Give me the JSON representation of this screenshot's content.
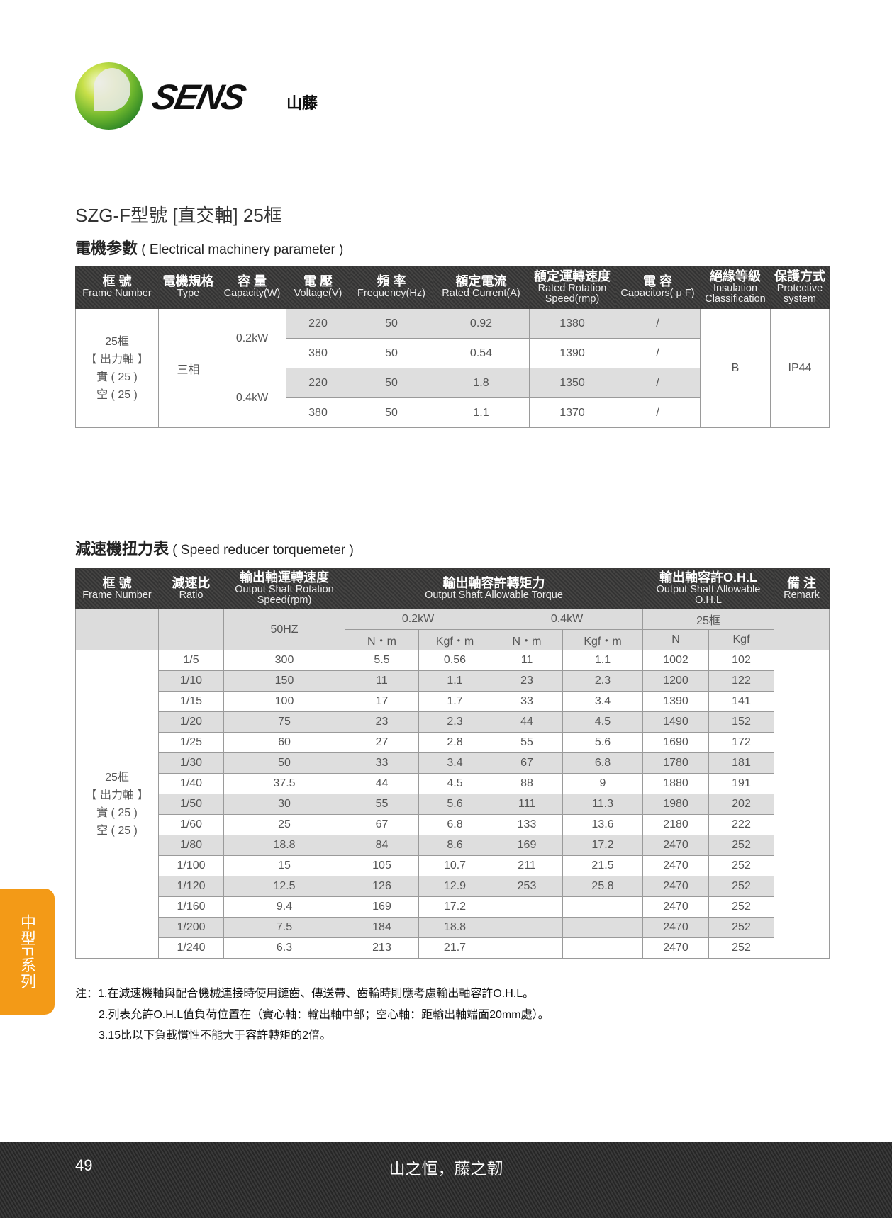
{
  "brand": {
    "logo_text": "SENS",
    "logo_sub": "山藤",
    "brand_color": "#5aae2e"
  },
  "title": "SZG-F型號 [直交軸] 25框",
  "section1": {
    "cn": "電機参數",
    "en": "( Electrical machinery parameter )"
  },
  "table1": {
    "headers": [
      {
        "cn": "框 號",
        "en": "Frame Number"
      },
      {
        "cn": "電機規格",
        "en": "Type"
      },
      {
        "cn": "容 量",
        "en": "Capacity(W)"
      },
      {
        "cn": "電 壓",
        "en": "Voltage(V)"
      },
      {
        "cn": "頻 率",
        "en": "Frequency(Hz)"
      },
      {
        "cn": "額定電流",
        "en": "Rated Current(A)"
      },
      {
        "cn": "額定運轉速度",
        "en": "Rated Rotation Speed(rmp)"
      },
      {
        "cn": "電 容",
        "en": "Capacitors( μ F)"
      },
      {
        "cn": "絕緣等級",
        "en": "Insulation Classification"
      },
      {
        "cn": "保護方式",
        "en": "Protective system"
      }
    ],
    "frame": [
      "25框",
      "【 出力軸 】",
      "實 ( 25 )",
      "空 ( 25 )"
    ],
    "type": "三相",
    "capacities": [
      "0.2kW",
      "0.4kW"
    ],
    "rows": [
      [
        "220",
        "50",
        "0.92",
        "1380",
        "/"
      ],
      [
        "380",
        "50",
        "0.54",
        "1390",
        "/"
      ],
      [
        "220",
        "50",
        "1.8",
        "1350",
        "/"
      ],
      [
        "380",
        "50",
        "1.1",
        "1370",
        "/"
      ]
    ],
    "insulation": "B",
    "protection": "IP44"
  },
  "section2": {
    "cn": "減速機扭力表",
    "en": "( Speed reducer torquemeter )"
  },
  "table2": {
    "headers": [
      {
        "cn": "框 號",
        "en": "Frame Number"
      },
      {
        "cn": "減速比",
        "en": "Ratio"
      },
      {
        "cn": "輸出軸運轉速度",
        "en": "Output Shaft Rotation Speed(rpm)"
      },
      {
        "cn": "輸出軸容許轉矩力",
        "en": "Output Shaft Allowable Torque"
      },
      {
        "cn": "輸出軸容許O.H.L",
        "en": "Output Shaft Allowable O.H.L"
      },
      {
        "cn": "備 注",
        "en": "Remark"
      }
    ],
    "freq": "50HZ",
    "groups": [
      "0.2kW",
      "0.4kW",
      "25框"
    ],
    "units": [
      "N・m",
      "Kgf・m",
      "N・m",
      "Kgf・m",
      "N",
      "Kgf"
    ],
    "frame": [
      "25框",
      "【 出力軸 】",
      "實 ( 25 )",
      "空 ( 25 )"
    ],
    "rows": [
      [
        "1/5",
        "300",
        "5.5",
        "0.56",
        "11",
        "1.1",
        "1002",
        "102"
      ],
      [
        "1/10",
        "150",
        "11",
        "1.1",
        "23",
        "2.3",
        "1200",
        "122"
      ],
      [
        "1/15",
        "100",
        "17",
        "1.7",
        "33",
        "3.4",
        "1390",
        "141"
      ],
      [
        "1/20",
        "75",
        "23",
        "2.3",
        "44",
        "4.5",
        "1490",
        "152"
      ],
      [
        "1/25",
        "60",
        "27",
        "2.8",
        "55",
        "5.6",
        "1690",
        "172"
      ],
      [
        "1/30",
        "50",
        "33",
        "3.4",
        "67",
        "6.8",
        "1780",
        "181"
      ],
      [
        "1/40",
        "37.5",
        "44",
        "4.5",
        "88",
        "9",
        "1880",
        "191"
      ],
      [
        "1/50",
        "30",
        "55",
        "5.6",
        "111",
        "11.3",
        "1980",
        "202"
      ],
      [
        "1/60",
        "25",
        "67",
        "6.8",
        "133",
        "13.6",
        "2180",
        "222"
      ],
      [
        "1/80",
        "18.8",
        "84",
        "8.6",
        "169",
        "17.2",
        "2470",
        "252"
      ],
      [
        "1/100",
        "15",
        "105",
        "10.7",
        "211",
        "21.5",
        "2470",
        "252"
      ],
      [
        "1/120",
        "12.5",
        "126",
        "12.9",
        "253",
        "25.8",
        "2470",
        "252"
      ],
      [
        "1/160",
        "9.4",
        "169",
        "17.2",
        "",
        "",
        "2470",
        "252"
      ],
      [
        "1/200",
        "7.5",
        "184",
        "18.8",
        "",
        "",
        "2470",
        "252"
      ],
      [
        "1/240",
        "6.3",
        "213",
        "21.7",
        "",
        "",
        "2470",
        "252"
      ]
    ]
  },
  "notes": [
    "注：1.在減速機軸與配合機械連接時使用鏈齒、傳送帶、齒輪時則應考慮輸出軸容許O.H.L。",
    "2.列表允許O.H.L值負荷位置在（實心軸：輸出軸中部；空心軸：距輸出軸端面20mm處）。",
    "3.15比以下負載慣性不能大于容許轉矩的2倍。"
  ],
  "side_tab": "中型F系列",
  "side_tab_color": "#f39a17",
  "footer": {
    "page_number": "49",
    "slogan": "山之恒，藤之韌"
  }
}
